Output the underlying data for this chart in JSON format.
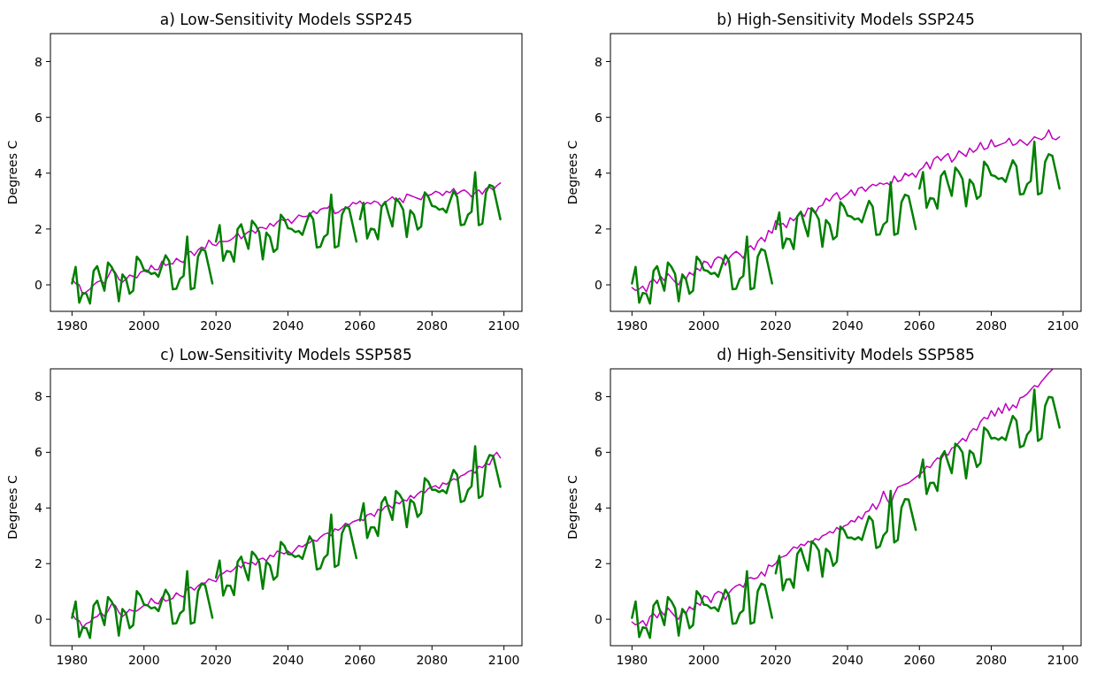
{
  "chart_data": [
    {
      "type": "line",
      "title": "a) Low-Sensitivity Models SSP245",
      "ylabel": "Degrees C",
      "xlim": [
        1974,
        2105
      ],
      "xticks": [
        1980,
        2000,
        2020,
        2040,
        2060,
        2080,
        2100
      ],
      "ylim": [
        -0.95,
        9
      ],
      "yticks": [
        0,
        2,
        4,
        6,
        8
      ],
      "x": [
        1980,
        1981,
        1982,
        1983,
        1984,
        1985,
        1986,
        1987,
        1988,
        1989,
        1990,
        1991,
        1992,
        1993,
        1994,
        1995,
        1996,
        1997,
        1998,
        1999,
        2000,
        2001,
        2002,
        2003,
        2004,
        2005,
        2006,
        2007,
        2008,
        2009,
        2010,
        2011,
        2012,
        2013,
        2014,
        2015,
        2016,
        2017,
        2018,
        2019,
        2020,
        2021,
        2022,
        2023,
        2024,
        2025,
        2026,
        2027,
        2028,
        2029,
        2030,
        2031,
        2032,
        2033,
        2034,
        2035,
        2036,
        2037,
        2038,
        2039,
        2040,
        2041,
        2042,
        2043,
        2044,
        2045,
        2046,
        2047,
        2048,
        2049,
        2050,
        2051,
        2052,
        2053,
        2054,
        2055,
        2056,
        2057,
        2058,
        2059,
        2060,
        2061,
        2062,
        2063,
        2064,
        2065,
        2066,
        2067,
        2068,
        2069,
        2070,
        2071,
        2072,
        2073,
        2074,
        2075,
        2076,
        2077,
        2078,
        2079,
        2080,
        2081,
        2082,
        2083,
        2084,
        2085,
        2086,
        2087,
        2088,
        2089,
        2090,
        2091,
        2092,
        2093,
        2094,
        2095,
        2096,
        2097,
        2098,
        2099
      ],
      "series": [
        {
          "color": "#bf00bf",
          "values": [
            0.2,
            0.05,
            0.0,
            -0.35,
            -0.25,
            -0.15,
            0.0,
            0.1,
            0.15,
            0.05,
            0.3,
            0.55,
            0.45,
            0.2,
            0.1,
            0.2,
            0.35,
            0.3,
            0.25,
            0.45,
            0.5,
            0.45,
            0.7,
            0.55,
            0.55,
            0.85,
            0.7,
            0.75,
            0.75,
            0.95,
            0.85,
            0.8,
            1.15,
            1.2,
            1.05,
            1.25,
            1.35,
            1.3,
            1.6,
            1.45,
            1.4,
            1.55,
            1.55,
            1.55,
            1.6,
            1.7,
            1.85,
            1.65,
            1.8,
            1.9,
            1.95,
            1.85,
            2.05,
            2.05,
            2.0,
            2.2,
            2.1,
            2.25,
            2.35,
            2.3,
            2.35,
            2.2,
            2.35,
            2.5,
            2.45,
            2.45,
            2.5,
            2.65,
            2.55,
            2.7,
            2.75,
            2.75,
            2.9,
            2.55,
            2.6,
            2.7,
            2.75,
            2.8,
            2.95,
            2.9,
            3.0,
            2.85,
            2.95,
            2.9,
            3.0,
            2.95,
            2.8,
            2.95,
            3.05,
            3.15,
            3.0,
            3.1,
            2.95,
            3.25,
            3.2,
            3.15,
            3.1,
            3.05,
            3.3,
            3.2,
            3.25,
            3.35,
            3.3,
            3.2,
            3.35,
            3.3,
            3.45,
            3.25,
            3.35,
            3.4,
            3.3,
            3.15,
            3.3,
            3.4,
            3.25,
            3.45,
            3.5,
            3.4,
            3.55,
            3.65
          ]
        },
        {
          "color": "#008000",
          "x": [
            1980,
            1981,
            1982,
            1983,
            1984,
            1985,
            1986,
            1987,
            1988,
            1989,
            1990,
            1991,
            1992,
            1993,
            1994,
            1995,
            1996,
            1997,
            1998,
            1999,
            2000,
            2001,
            2002,
            2003,
            2004,
            2005,
            2006,
            2007,
            2008,
            2009,
            2010,
            2011,
            2012,
            2013,
            2014,
            2015,
            2016,
            2017,
            2018,
            2019
          ],
          "values": [
            0.05,
            0.64,
            -0.64,
            -0.29,
            -0.32,
            -0.67,
            0.5,
            0.67,
            0.21,
            -0.21,
            0.8,
            0.64,
            0.39,
            -0.59,
            0.37,
            0.21,
            -0.32,
            -0.21,
            1.01,
            0.85,
            0.53,
            0.5,
            0.39,
            0.43,
            0.29,
            0.69,
            1.06,
            0.85,
            -0.16,
            -0.14,
            0.21,
            0.32,
            1.73,
            -0.16,
            -0.11,
            1.01,
            1.28,
            1.22,
            0.64,
            0.05
          ]
        },
        {
          "color": "#008000",
          "x": [
            2020,
            2021,
            2022,
            2023,
            2024,
            2025,
            2026,
            2027,
            2028,
            2029,
            2030,
            2031,
            2032,
            2033,
            2034,
            2035,
            2036,
            2037,
            2038,
            2039,
            2040,
            2041,
            2042,
            2043,
            2044,
            2045,
            2046,
            2047,
            2048,
            2049,
            2050,
            2051,
            2052,
            2053,
            2054,
            2055,
            2056,
            2057,
            2058,
            2059
          ],
          "values": [
            1.55,
            2.14,
            0.86,
            1.21,
            1.18,
            0.83,
            2.0,
            2.17,
            1.71,
            1.29,
            2.3,
            2.14,
            1.89,
            0.91,
            1.87,
            1.71,
            1.18,
            1.29,
            2.51,
            2.35,
            2.03,
            2.0,
            1.89,
            1.93,
            1.79,
            2.19,
            2.56,
            2.35,
            1.34,
            1.36,
            1.71,
            1.82,
            3.23,
            1.34,
            1.39,
            2.51,
            2.78,
            2.72,
            2.14,
            1.55
          ]
        },
        {
          "color": "#008000",
          "x": [
            2060,
            2061,
            2062,
            2063,
            2064,
            2065,
            2066,
            2067,
            2068,
            2069,
            2070,
            2071,
            2072,
            2073,
            2074,
            2075,
            2076,
            2077,
            2078,
            2079,
            2080,
            2081,
            2082,
            2083,
            2084,
            2085,
            2086,
            2087,
            2088,
            2089,
            2090,
            2091,
            2092,
            2093,
            2094,
            2095,
            2096,
            2097,
            2098,
            2099
          ],
          "values": [
            2.35,
            2.94,
            1.66,
            2.01,
            1.98,
            1.63,
            2.8,
            2.97,
            2.51,
            2.09,
            3.1,
            2.94,
            2.69,
            1.71,
            2.67,
            2.51,
            1.98,
            2.09,
            3.31,
            3.15,
            2.83,
            2.8,
            2.69,
            2.73,
            2.59,
            2.99,
            3.36,
            3.15,
            2.14,
            2.16,
            2.51,
            2.62,
            4.03,
            2.14,
            2.19,
            3.31,
            3.58,
            3.52,
            2.94,
            2.35
          ]
        }
      ]
    },
    {
      "type": "line",
      "title": "b) High-Sensitivity Models SSP245",
      "ylabel": "Degrees C",
      "xlim": [
        1974,
        2105
      ],
      "xticks": [
        1980,
        2000,
        2020,
        2040,
        2060,
        2080,
        2100
      ],
      "ylim": [
        -0.95,
        9
      ],
      "yticks": [
        0,
        2,
        4,
        6,
        8
      ],
      "x": [
        1980,
        1981,
        1982,
        1983,
        1984,
        1985,
        1986,
        1987,
        1988,
        1989,
        1990,
        1991,
        1992,
        1993,
        1994,
        1995,
        1996,
        1997,
        1998,
        1999,
        2000,
        2001,
        2002,
        2003,
        2004,
        2005,
        2006,
        2007,
        2008,
        2009,
        2010,
        2011,
        2012,
        2013,
        2014,
        2015,
        2016,
        2017,
        2018,
        2019,
        2020,
        2021,
        2022,
        2023,
        2024,
        2025,
        2026,
        2027,
        2028,
        2029,
        2030,
        2031,
        2032,
        2033,
        2034,
        2035,
        2036,
        2037,
        2038,
        2039,
        2040,
        2041,
        2042,
        2043,
        2044,
        2045,
        2046,
        2047,
        2048,
        2049,
        2050,
        2051,
        2052,
        2053,
        2054,
        2055,
        2056,
        2057,
        2058,
        2059,
        2060,
        2061,
        2062,
        2063,
        2064,
        2065,
        2066,
        2067,
        2068,
        2069,
        2070,
        2071,
        2072,
        2073,
        2074,
        2075,
        2076,
        2077,
        2078,
        2079,
        2080,
        2081,
        2082,
        2083,
        2084,
        2085,
        2086,
        2087,
        2088,
        2089,
        2090,
        2091,
        2092,
        2093,
        2094,
        2095,
        2096,
        2097,
        2098,
        2099
      ],
      "series": [
        {
          "color": "#bf00bf",
          "values": [
            -0.1,
            -0.2,
            -0.15,
            -0.05,
            -0.25,
            0.1,
            0.2,
            0.05,
            0.3,
            0.15,
            0.4,
            0.25,
            0.1,
            0.0,
            0.3,
            0.2,
            0.45,
            0.35,
            0.6,
            0.5,
            0.85,
            0.8,
            0.6,
            0.9,
            1.0,
            0.95,
            0.7,
            0.95,
            1.1,
            1.2,
            1.1,
            0.95,
            1.3,
            1.4,
            1.25,
            1.55,
            1.7,
            1.55,
            1.95,
            1.85,
            2.3,
            2.15,
            2.2,
            2.05,
            2.4,
            2.3,
            2.45,
            2.6,
            2.45,
            2.75,
            2.7,
            2.55,
            2.8,
            2.85,
            3.1,
            3.0,
            3.2,
            3.3,
            3.05,
            3.15,
            3.25,
            3.4,
            3.2,
            3.45,
            3.5,
            3.35,
            3.5,
            3.6,
            3.55,
            3.65,
            3.6,
            3.65,
            3.55,
            3.9,
            3.7,
            3.75,
            4.0,
            3.9,
            4.0,
            3.85,
            4.1,
            4.2,
            4.4,
            4.15,
            4.5,
            4.6,
            4.45,
            4.6,
            4.7,
            4.4,
            4.55,
            4.8,
            4.7,
            4.6,
            4.9,
            4.75,
            4.85,
            5.1,
            4.85,
            4.9,
            5.2,
            4.95,
            5.0,
            5.05,
            5.1,
            5.25,
            5.0,
            5.05,
            5.2,
            5.1,
            5.0,
            5.15,
            5.3,
            5.25,
            5.2,
            5.3,
            5.55,
            5.25,
            5.2,
            5.3
          ]
        },
        {
          "color": "#008000",
          "x": [
            1980,
            1981,
            1982,
            1983,
            1984,
            1985,
            1986,
            1987,
            1988,
            1989,
            1990,
            1991,
            1992,
            1993,
            1994,
            1995,
            1996,
            1997,
            1998,
            1999,
            2000,
            2001,
            2002,
            2003,
            2004,
            2005,
            2006,
            2007,
            2008,
            2009,
            2010,
            2011,
            2012,
            2013,
            2014,
            2015,
            2016,
            2017,
            2018,
            2019
          ],
          "values": [
            0.05,
            0.64,
            -0.64,
            -0.29,
            -0.32,
            -0.67,
            0.5,
            0.67,
            0.21,
            -0.21,
            0.8,
            0.64,
            0.39,
            -0.59,
            0.37,
            0.21,
            -0.32,
            -0.21,
            1.01,
            0.85,
            0.53,
            0.5,
            0.39,
            0.43,
            0.29,
            0.69,
            1.06,
            0.85,
            -0.16,
            -0.14,
            0.21,
            0.32,
            1.73,
            -0.16,
            -0.11,
            1.01,
            1.28,
            1.22,
            0.64,
            0.05
          ]
        },
        {
          "color": "#008000",
          "x": [
            2020,
            2021,
            2022,
            2023,
            2024,
            2025,
            2026,
            2027,
            2028,
            2029,
            2030,
            2031,
            2032,
            2033,
            2034,
            2035,
            2036,
            2037,
            2038,
            2039,
            2040,
            2041,
            2042,
            2043,
            2044,
            2045,
            2046,
            2047,
            2048,
            2049,
            2050,
            2051,
            2052,
            2053,
            2054,
            2055,
            2056,
            2057,
            2058,
            2059
          ],
          "values": [
            2.0,
            2.59,
            1.31,
            1.66,
            1.63,
            1.28,
            2.45,
            2.62,
            2.16,
            1.74,
            2.75,
            2.59,
            2.34,
            1.36,
            2.32,
            2.16,
            1.63,
            1.74,
            2.96,
            2.8,
            2.48,
            2.45,
            2.34,
            2.38,
            2.24,
            2.64,
            3.01,
            2.8,
            1.79,
            1.81,
            2.16,
            2.27,
            3.68,
            1.79,
            1.84,
            2.96,
            3.23,
            3.17,
            2.59,
            2.0
          ]
        },
        {
          "color": "#008000",
          "x": [
            2060,
            2061,
            2062,
            2063,
            2064,
            2065,
            2066,
            2067,
            2068,
            2069,
            2070,
            2071,
            2072,
            2073,
            2074,
            2075,
            2076,
            2077,
            2078,
            2079,
            2080,
            2081,
            2082,
            2083,
            2084,
            2085,
            2086,
            2087,
            2088,
            2089,
            2090,
            2091,
            2092,
            2093,
            2094,
            2095,
            2096,
            2097,
            2098,
            2099
          ],
          "values": [
            3.45,
            4.04,
            2.76,
            3.11,
            3.08,
            2.73,
            3.9,
            4.07,
            3.61,
            3.19,
            4.2,
            4.04,
            3.79,
            2.81,
            3.77,
            3.61,
            3.08,
            3.19,
            4.41,
            4.25,
            3.93,
            3.9,
            3.79,
            3.83,
            3.69,
            4.09,
            4.46,
            4.25,
            3.24,
            3.26,
            3.61,
            3.72,
            5.13,
            3.24,
            3.29,
            4.41,
            4.68,
            4.62,
            4.04,
            3.45
          ]
        }
      ]
    },
    {
      "type": "line",
      "title": "c) Low-Sensitivity Models SSP585",
      "ylabel": "Degrees C",
      "xlim": [
        1974,
        2105
      ],
      "xticks": [
        1980,
        2000,
        2020,
        2040,
        2060,
        2080,
        2100
      ],
      "ylim": [
        -0.95,
        9
      ],
      "yticks": [
        0,
        2,
        4,
        6,
        8
      ],
      "x": [
        1980,
        1981,
        1982,
        1983,
        1984,
        1985,
        1986,
        1987,
        1988,
        1989,
        1990,
        1991,
        1992,
        1993,
        1994,
        1995,
        1996,
        1997,
        1998,
        1999,
        2000,
        2001,
        2002,
        2003,
        2004,
        2005,
        2006,
        2007,
        2008,
        2009,
        2010,
        2011,
        2012,
        2013,
        2014,
        2015,
        2016,
        2017,
        2018,
        2019,
        2020,
        2021,
        2022,
        2023,
        2024,
        2025,
        2026,
        2027,
        2028,
        2029,
        2030,
        2031,
        2032,
        2033,
        2034,
        2035,
        2036,
        2037,
        2038,
        2039,
        2040,
        2041,
        2042,
        2043,
        2044,
        2045,
        2046,
        2047,
        2048,
        2049,
        2050,
        2051,
        2052,
        2053,
        2054,
        2055,
        2056,
        2057,
        2058,
        2059,
        2060,
        2061,
        2062,
        2063,
        2064,
        2065,
        2066,
        2067,
        2068,
        2069,
        2070,
        2071,
        2072,
        2073,
        2074,
        2075,
        2076,
        2077,
        2078,
        2079,
        2080,
        2081,
        2082,
        2083,
        2084,
        2085,
        2086,
        2087,
        2088,
        2089,
        2090,
        2091,
        2092,
        2093,
        2094,
        2095,
        2096,
        2097,
        2098,
        2099
      ],
      "series": [
        {
          "color": "#bf00bf",
          "values": [
            0.2,
            0.0,
            -0.05,
            -0.3,
            -0.15,
            -0.1,
            0.05,
            0.1,
            0.25,
            0.1,
            0.3,
            0.55,
            0.5,
            0.25,
            0.1,
            0.2,
            0.35,
            0.3,
            0.3,
            0.4,
            0.5,
            0.5,
            0.75,
            0.6,
            0.55,
            0.8,
            0.65,
            0.7,
            0.75,
            0.95,
            0.85,
            0.8,
            1.1,
            1.15,
            1.05,
            1.2,
            1.3,
            1.3,
            1.45,
            1.4,
            1.35,
            1.6,
            1.65,
            1.75,
            1.7,
            1.8,
            1.95,
            1.85,
            2.05,
            2.0,
            2.05,
            1.95,
            2.15,
            2.2,
            2.1,
            2.3,
            2.25,
            2.45,
            2.4,
            2.35,
            2.45,
            2.35,
            2.5,
            2.65,
            2.6,
            2.7,
            2.75,
            2.85,
            2.8,
            2.95,
            3.05,
            3.1,
            3.0,
            3.25,
            3.2,
            3.3,
            3.45,
            3.4,
            3.5,
            3.55,
            3.6,
            3.55,
            3.75,
            3.8,
            3.7,
            3.95,
            3.9,
            4.05,
            4.1,
            4.0,
            4.2,
            4.15,
            4.3,
            4.25,
            4.45,
            4.35,
            4.5,
            4.6,
            4.55,
            4.7,
            4.75,
            4.8,
            4.7,
            4.9,
            4.85,
            4.95,
            5.05,
            5.0,
            5.15,
            5.2,
            5.3,
            5.35,
            5.25,
            5.5,
            5.45,
            5.6,
            5.55,
            5.85,
            6.0,
            5.8
          ]
        },
        {
          "color": "#008000",
          "x": [
            1980,
            1981,
            1982,
            1983,
            1984,
            1985,
            1986,
            1987,
            1988,
            1989,
            1990,
            1991,
            1992,
            1993,
            1994,
            1995,
            1996,
            1997,
            1998,
            1999,
            2000,
            2001,
            2002,
            2003,
            2004,
            2005,
            2006,
            2007,
            2008,
            2009,
            2010,
            2011,
            2012,
            2013,
            2014,
            2015,
            2016,
            2017,
            2018,
            2019
          ],
          "values": [
            0.05,
            0.64,
            -0.64,
            -0.29,
            -0.32,
            -0.67,
            0.5,
            0.67,
            0.21,
            -0.21,
            0.8,
            0.64,
            0.39,
            -0.59,
            0.37,
            0.21,
            -0.32,
            -0.21,
            1.01,
            0.85,
            0.53,
            0.5,
            0.39,
            0.43,
            0.29,
            0.69,
            1.06,
            0.85,
            -0.16,
            -0.14,
            0.21,
            0.32,
            1.73,
            -0.16,
            -0.11,
            1.01,
            1.28,
            1.22,
            0.64,
            0.05
          ]
        },
        {
          "color": "#008000",
          "x": [
            2020,
            2021,
            2022,
            2023,
            2024,
            2025,
            2026,
            2027,
            2028,
            2029,
            2030,
            2031,
            2032,
            2033,
            2034,
            2035,
            2036,
            2037,
            2038,
            2039,
            2040,
            2041,
            2042,
            2043,
            2044,
            2045,
            2046,
            2047,
            2048,
            2049,
            2050,
            2051,
            2052,
            2053,
            2054,
            2055,
            2056,
            2057,
            2058,
            2059
          ],
          "values": [
            1.5,
            2.11,
            0.85,
            1.21,
            1.2,
            0.87,
            2.06,
            2.25,
            1.8,
            1.4,
            2.43,
            2.29,
            2.06,
            1.09,
            2.07,
            1.93,
            1.42,
            1.55,
            2.78,
            2.64,
            2.34,
            2.33,
            2.24,
            2.29,
            2.17,
            2.59,
            2.98,
            2.79,
            1.79,
            1.83,
            2.2,
            2.33,
            3.76,
            1.88,
            1.95,
            3.09,
            3.38,
            3.34,
            2.77,
            2.2
          ]
        },
        {
          "color": "#008000",
          "x": [
            2060,
            2061,
            2062,
            2063,
            2064,
            2065,
            2066,
            2067,
            2068,
            2069,
            2070,
            2071,
            2072,
            2073,
            2074,
            2075,
            2076,
            2077,
            2078,
            2079,
            2080,
            2081,
            2082,
            2083,
            2084,
            2085,
            2086,
            2087,
            2088,
            2089,
            2090,
            2091,
            2092,
            2093,
            2094,
            2095,
            2096,
            2097,
            2098,
            2099
          ],
          "values": [
            3.55,
            4.17,
            2.92,
            3.3,
            3.3,
            2.99,
            4.19,
            4.39,
            3.96,
            3.57,
            4.61,
            4.48,
            4.26,
            3.31,
            4.3,
            4.18,
            3.68,
            3.82,
            5.07,
            4.94,
            4.65,
            4.65,
            4.57,
            4.64,
            4.53,
            4.97,
            5.37,
            5.19,
            4.21,
            4.26,
            4.64,
            4.78,
            6.22,
            4.36,
            4.44,
            5.6,
            5.9,
            5.87,
            5.32,
            4.76
          ]
        }
      ]
    },
    {
      "type": "line",
      "title": "d) High-Sensitivity Models SSP585",
      "ylabel": "Degrees C",
      "xlim": [
        1974,
        2105
      ],
      "xticks": [
        1980,
        2000,
        2020,
        2040,
        2060,
        2080,
        2100
      ],
      "ylim": [
        -0.95,
        9
      ],
      "yticks": [
        0,
        2,
        4,
        6,
        8
      ],
      "x": [
        1980,
        1981,
        1982,
        1983,
        1984,
        1985,
        1986,
        1987,
        1988,
        1989,
        1990,
        1991,
        1992,
        1993,
        1994,
        1995,
        1996,
        1997,
        1998,
        1999,
        2000,
        2001,
        2002,
        2003,
        2004,
        2005,
        2006,
        2007,
        2008,
        2009,
        2010,
        2011,
        2012,
        2013,
        2014,
        2015,
        2016,
        2017,
        2018,
        2019,
        2020,
        2021,
        2022,
        2023,
        2024,
        2025,
        2026,
        2027,
        2028,
        2029,
        2030,
        2031,
        2032,
        2033,
        2034,
        2035,
        2036,
        2037,
        2038,
        2039,
        2040,
        2041,
        2042,
        2043,
        2044,
        2045,
        2046,
        2047,
        2048,
        2049,
        2050,
        2051,
        2052,
        2053,
        2054,
        2055,
        2056,
        2057,
        2058,
        2059,
        2060,
        2061,
        2062,
        2063,
        2064,
        2065,
        2066,
        2067,
        2068,
        2069,
        2070,
        2071,
        2072,
        2073,
        2074,
        2075,
        2076,
        2077,
        2078,
        2079,
        2080,
        2081,
        2082,
        2083,
        2084,
        2085,
        2086,
        2087,
        2088,
        2089,
        2090,
        2091,
        2092,
        2093,
        2094,
        2095,
        2096,
        2097
      ],
      "series": [
        {
          "color": "#bf00bf",
          "values": [
            -0.1,
            -0.2,
            -0.15,
            -0.05,
            -0.25,
            0.1,
            0.2,
            0.05,
            0.3,
            0.15,
            0.4,
            0.25,
            0.1,
            0.0,
            0.3,
            0.2,
            0.45,
            0.35,
            0.6,
            0.5,
            0.85,
            0.8,
            0.6,
            0.9,
            1.0,
            0.95,
            0.7,
            0.95,
            1.1,
            1.2,
            1.25,
            1.15,
            1.45,
            1.5,
            1.45,
            1.5,
            1.7,
            1.55,
            1.95,
            1.9,
            2.0,
            2.2,
            2.25,
            2.3,
            2.45,
            2.6,
            2.55,
            2.7,
            2.65,
            2.8,
            2.75,
            2.9,
            2.85,
            3.0,
            3.05,
            3.15,
            3.1,
            3.3,
            3.2,
            3.35,
            3.4,
            3.55,
            3.5,
            3.7,
            3.6,
            3.85,
            3.9,
            4.15,
            3.95,
            4.2,
            4.6,
            4.3,
            4.1,
            4.5,
            4.75,
            4.8,
            4.85,
            4.9,
            5.0,
            5.1,
            5.2,
            5.3,
            5.5,
            5.45,
            5.65,
            5.8,
            5.75,
            5.95,
            5.9,
            6.15,
            6.2,
            6.35,
            6.5,
            6.4,
            6.7,
            6.85,
            6.8,
            7.1,
            7.25,
            7.2,
            7.5,
            7.3,
            7.6,
            7.4,
            7.75,
            7.5,
            7.7,
            7.6,
            7.95,
            8.0,
            8.1,
            8.25,
            8.4,
            8.35,
            8.55,
            8.7,
            8.85,
            8.98
          ]
        },
        {
          "color": "#008000",
          "x": [
            1980,
            1981,
            1982,
            1983,
            1984,
            1985,
            1986,
            1987,
            1988,
            1989,
            1990,
            1991,
            1992,
            1993,
            1994,
            1995,
            1996,
            1997,
            1998,
            1999,
            2000,
            2001,
            2002,
            2003,
            2004,
            2005,
            2006,
            2007,
            2008,
            2009,
            2010,
            2011,
            2012,
            2013,
            2014,
            2015,
            2016,
            2017,
            2018,
            2019
          ],
          "values": [
            0.05,
            0.64,
            -0.64,
            -0.29,
            -0.32,
            -0.67,
            0.5,
            0.67,
            0.21,
            -0.21,
            0.8,
            0.64,
            0.39,
            -0.59,
            0.37,
            0.21,
            -0.32,
            -0.21,
            1.01,
            0.85,
            0.53,
            0.5,
            0.39,
            0.43,
            0.29,
            0.69,
            1.06,
            0.85,
            -0.16,
            -0.14,
            0.21,
            0.32,
            1.73,
            -0.16,
            -0.11,
            1.01,
            1.28,
            1.22,
            0.64,
            0.05
          ]
        },
        {
          "color": "#008000",
          "x": [
            2020,
            2021,
            2022,
            2023,
            2024,
            2025,
            2026,
            2027,
            2028,
            2029,
            2030,
            2031,
            2032,
            2033,
            2034,
            2035,
            2036,
            2037,
            2038,
            2039,
            2040,
            2041,
            2042,
            2043,
            2044,
            2045,
            2046,
            2047,
            2048,
            2049,
            2050,
            2051,
            2052,
            2053,
            2054,
            2055,
            2056,
            2057,
            2058,
            2059
          ],
          "values": [
            1.65,
            2.28,
            1.04,
            1.43,
            1.44,
            1.13,
            2.34,
            2.55,
            2.13,
            1.75,
            2.8,
            2.68,
            2.47,
            1.53,
            2.53,
            2.41,
            1.92,
            2.07,
            3.33,
            3.21,
            2.93,
            2.94,
            2.87,
            2.95,
            2.85,
            3.29,
            3.7,
            3.53,
            2.56,
            2.62,
            3.01,
            3.16,
            4.61,
            2.76,
            2.85,
            4.01,
            4.32,
            4.3,
            3.76,
            3.21
          ]
        },
        {
          "color": "#008000",
          "x": [
            2060,
            2061,
            2062,
            2063,
            2064,
            2065,
            2066,
            2067,
            2068,
            2069,
            2070,
            2071,
            2072,
            2073,
            2074,
            2075,
            2076,
            2077,
            2078,
            2079,
            2080,
            2081,
            2082,
            2083,
            2084,
            2085,
            2086,
            2087,
            2088,
            2089,
            2090,
            2091,
            2092,
            2093,
            2094,
            2095,
            2096,
            2097,
            2098,
            2099
          ],
          "values": [
            5.1,
            5.74,
            4.5,
            4.9,
            4.91,
            4.61,
            5.83,
            6.04,
            5.63,
            5.25,
            6.31,
            6.2,
            5.99,
            5.06,
            6.06,
            5.95,
            5.47,
            5.62,
            6.89,
            6.77,
            6.5,
            6.52,
            6.45,
            6.54,
            6.44,
            6.89,
            7.31,
            7.14,
            6.18,
            6.24,
            6.64,
            6.8,
            8.25,
            6.41,
            6.5,
            7.67,
            7.99,
            7.97,
            7.44,
            6.89
          ]
        }
      ]
    }
  ]
}
